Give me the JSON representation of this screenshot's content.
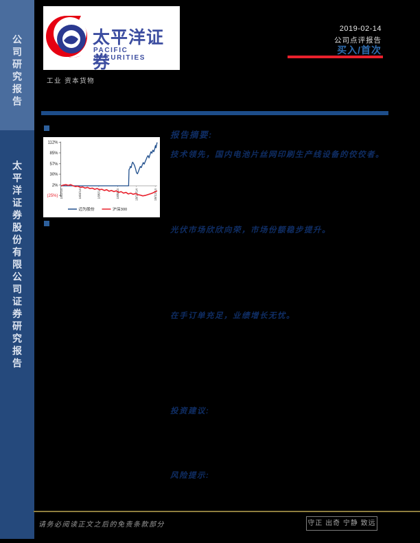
{
  "sidebar": {
    "top_label": "公司研究报告",
    "bottom_label": "太平洋证券股份有限公司证券研究报告"
  },
  "logo": {
    "cn": "太平洋证券",
    "en": "PACIFIC SECURITIES"
  },
  "header": {
    "date": "2019-02-14",
    "report_type": "公司点评报告",
    "rating": "买入/首次",
    "sector": "工业 资本货物"
  },
  "summary": {
    "heading": "报告摘要:",
    "tech_point": "技术领先，国内电池片丝网印刷生产线设备的佼佼者。",
    "market_point": "光伏市场欣欣向荣，市场份额稳步提升。",
    "orders_point": "在手订单充足，业绩增长无忧。",
    "advice_label": "投资建议:",
    "risk_label": "风险提示:"
  },
  "footer": {
    "disclaimer": "请务必阅读正文之后的免责条款部分",
    "motto": "守正 出奇 宁静 致远"
  },
  "colors": {
    "rating_blue": "#2e6bad",
    "accent_red": "#e8202c",
    "navy_text": "#0f2d63",
    "bar_blue": "#1d4d8a",
    "gold": "#8e7e3e",
    "sidebar_top": "#4a6d9e",
    "sidebar_bottom": "#25497c"
  },
  "chart_data": {
    "type": "line",
    "title": "",
    "xlabel": "",
    "ylabel": "",
    "ylim": [
      -29,
      114
    ],
    "grid": false,
    "legend_position": "bottom",
    "y_ticks": [
      {
        "label": "112%",
        "pct": 112,
        "color": "#1a1a1a"
      },
      {
        "label": "85%",
        "pct": 85,
        "color": "#1a1a1a"
      },
      {
        "label": "57%",
        "pct": 57,
        "color": "#1a1a1a"
      },
      {
        "label": "30%",
        "pct": 30,
        "color": "#1a1a1a"
      },
      {
        "label": "2%",
        "pct": 2,
        "color": "#1a1a1a"
      },
      {
        "label": "(25%)",
        "pct": -25,
        "color": "#e8202c"
      }
    ],
    "x_tick_labels": [
      "18/2/14",
      "18/4/14",
      "18/6/14",
      "18/8/14",
      "18/10/14",
      "18/12/14"
    ],
    "series": [
      {
        "name": "迈为股份",
        "color": "#1f4e8c",
        "width": 1.3,
        "x": [
          0,
          0.05,
          0.1,
          0.15,
          0.2,
          0.25,
          0.3,
          0.35,
          0.4,
          0.45,
          0.5,
          0.55,
          0.6,
          0.65,
          0.69,
          0.703,
          0.707,
          0.715,
          0.72,
          0.73,
          0.737,
          0.745,
          0.755,
          0.765,
          0.775,
          0.785,
          0.795,
          0.805,
          0.815,
          0.825,
          0.835,
          0.845,
          0.855,
          0.865,
          0.875,
          0.885,
          0.895,
          0.905,
          0.915,
          0.925,
          0.935,
          0.945,
          0.955,
          0.965,
          0.975,
          0.982,
          0.988,
          0.994,
          1
        ],
        "y": [
          0,
          0,
          0,
          0,
          0,
          0,
          0,
          0,
          0,
          0,
          0,
          0,
          0,
          0,
          0,
          0,
          42,
          44,
          50,
          47,
          56,
          61,
          57,
          52,
          44,
          34,
          31,
          37,
          44,
          50,
          47,
          54,
          60,
          56,
          62,
          68,
          74,
          78,
          72,
          80,
          88,
          84,
          92,
          88,
          96,
          104,
          98,
          106,
          112
        ]
      },
      {
        "name": "沪深300",
        "color": "#e8202c",
        "width": 1.6,
        "x": [
          0,
          0.025,
          0.05,
          0.075,
          0.1,
          0.125,
          0.15,
          0.175,
          0.2,
          0.225,
          0.25,
          0.275,
          0.3,
          0.325,
          0.35,
          0.375,
          0.4,
          0.425,
          0.45,
          0.475,
          0.5,
          0.525,
          0.55,
          0.575,
          0.6,
          0.625,
          0.65,
          0.675,
          0.7,
          0.725,
          0.75,
          0.775,
          0.8,
          0.825,
          0.85,
          0.875,
          0.9,
          0.925,
          0.95,
          0.975,
          1
        ],
        "y": [
          0,
          2,
          3,
          1,
          3,
          0,
          -2,
          -1,
          -4,
          -3,
          -6,
          -4,
          -7,
          -6,
          -9,
          -7,
          -10,
          -9,
          -12,
          -10,
          -14,
          -12,
          -15,
          -13,
          -17,
          -15,
          -19,
          -17,
          -21,
          -19,
          -22,
          -20,
          -23,
          -24,
          -26,
          -25,
          -23,
          -21,
          -19,
          -16,
          -13
        ]
      }
    ]
  }
}
